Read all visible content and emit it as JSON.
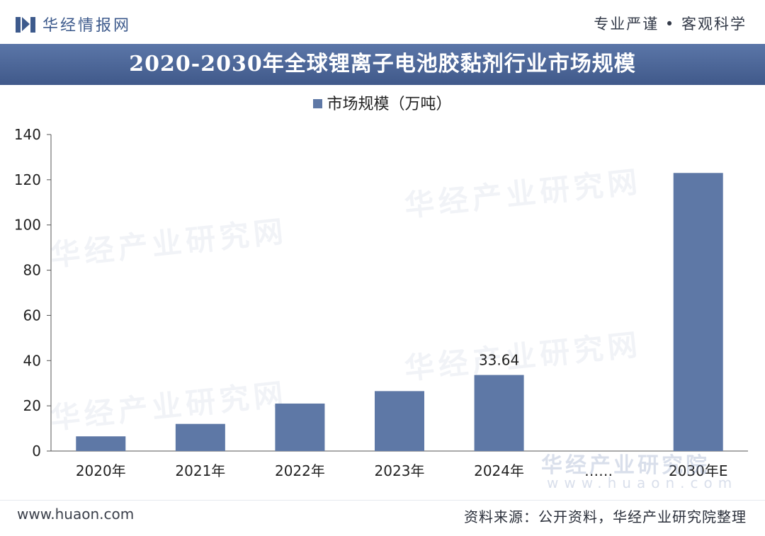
{
  "header": {
    "brand": "华经情报网",
    "slogan": "专业严谨 • 客观科学"
  },
  "footer": {
    "site": "www.huaon.com",
    "source": "资料来源：公开资料，华经产业研究院整理"
  },
  "watermarks": {
    "text": "华经产业研究网",
    "institute": "华经产业研究院",
    "domain": "www.huaon.com"
  },
  "colors": {
    "bar": "#5e78a6",
    "title_bg": "#4a6397",
    "brand": "#3d5a8c"
  },
  "chart_data": {
    "type": "bar",
    "title": "2020-2030年全球锂离子电池胶黏剂行业市场规模",
    "xlabel": "",
    "ylabel": "",
    "categories": [
      "2020年",
      "2021年",
      "2022年",
      "2023年",
      "2024年",
      "……",
      "2030年E"
    ],
    "series": [
      {
        "name": "市场规模（万吨）",
        "values": [
          6.5,
          12,
          21,
          26.5,
          33.64,
          null,
          123
        ]
      }
    ],
    "data_labels": {
      "2024年": "33.64"
    },
    "ylim": [
      0,
      140
    ],
    "yticks": [
      0,
      20,
      40,
      60,
      80,
      100,
      120,
      140
    ],
    "grid": false,
    "legend_position": "top-center"
  }
}
